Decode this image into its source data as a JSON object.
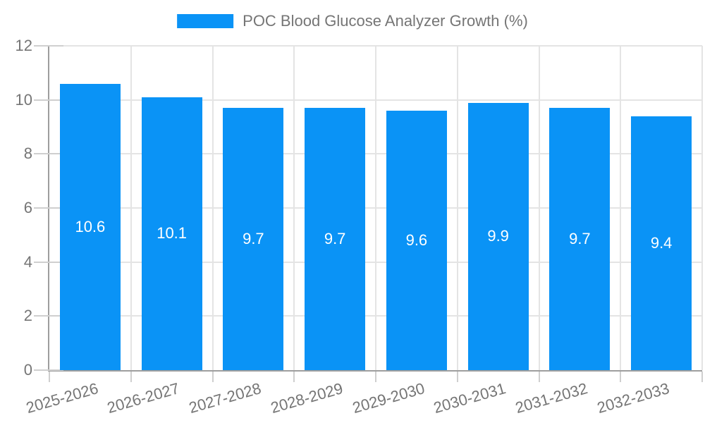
{
  "legend": {
    "swatch_color": "#0a93f6"
  },
  "chart_data": {
    "type": "bar",
    "title": "",
    "categories": [
      "2025-2026",
      "2026-2027",
      "2027-2028",
      "2028-2029",
      "2029-2030",
      "2030-2031",
      "2031-2032",
      "2032-2033"
    ],
    "series": [
      {
        "name": "POC Blood Glucose Analyzer Growth (%)",
        "values": [
          10.6,
          10.1,
          9.7,
          9.7,
          9.6,
          9.9,
          9.7,
          9.4
        ]
      }
    ],
    "bar_value_labels": [
      "10.6",
      "10.1",
      "9.7",
      "9.7",
      "9.6",
      "9.9",
      "9.7",
      "9.4"
    ],
    "ytick_labels": [
      "0",
      "2",
      "4",
      "6",
      "8",
      "10",
      "12"
    ],
    "yticks": [
      0,
      2,
      4,
      6,
      8,
      10,
      12
    ],
    "ylim": [
      0,
      12
    ],
    "xlabel": "",
    "ylabel": "",
    "grid": true,
    "legend_position": "top-center",
    "value_label_position": "inside-middle",
    "colors": {
      "bar": "#0a93f6",
      "bar_label_text": "#ffffff",
      "axis_line": "#9e9e9e",
      "tick_line": "#cfcfcf",
      "gridline": "#e4e4e4",
      "axis_text": "#757575",
      "legend_text": "#757575",
      "background": "#ffffff"
    }
  }
}
